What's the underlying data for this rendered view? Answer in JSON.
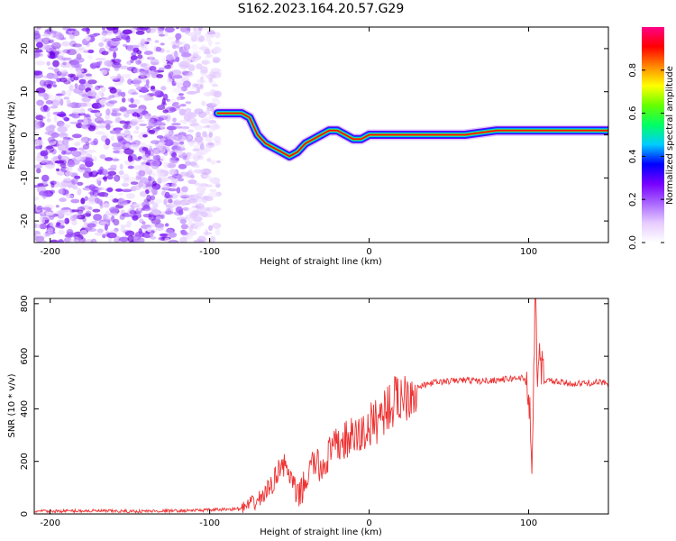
{
  "title": "S162.2023.164.20.57.G29",
  "chart_data": [
    {
      "type": "heatmap",
      "xlabel": "Height of straight line (km)",
      "ylabel": "Frequency (Hz)",
      "xlim": [
        -210,
        150
      ],
      "ylim": [
        -25,
        25
      ],
      "x_ticks": [
        -200,
        -100,
        0,
        100
      ],
      "y_ticks": [
        -20,
        -10,
        0,
        10,
        20
      ],
      "colorbar": {
        "label": "Normalized spectral amplitude",
        "range": [
          0,
          1
        ],
        "ticks": [
          0.0,
          0.2,
          0.4,
          0.6,
          0.8
        ]
      },
      "ridge": {
        "x": [
          -95,
          -90,
          -85,
          -80,
          -75,
          -70,
          -65,
          -60,
          -55,
          -50,
          -45,
          -40,
          -35,
          -30,
          -25,
          -20,
          -15,
          -10,
          -5,
          0,
          5,
          10,
          20,
          40,
          60,
          80,
          100,
          120,
          150
        ],
        "y": [
          5,
          5,
          5,
          5,
          4,
          0,
          -2,
          -3,
          -4,
          -5,
          -4,
          -2,
          -1,
          0,
          1,
          1,
          0,
          -1,
          -1,
          0,
          0,
          0,
          0,
          0,
          0,
          1,
          1,
          1,
          1
        ]
      }
    },
    {
      "type": "line",
      "xlabel": "Height of straight line (km)",
      "ylabel": "SNR (10 * v/v)",
      "xlim": [
        -210,
        150
      ],
      "ylim": [
        0,
        820
      ],
      "x_ticks": [
        -200,
        -100,
        0,
        100
      ],
      "y_ticks": [
        0,
        200,
        400,
        600,
        800
      ],
      "color": "#ee3333",
      "series": [
        {
          "x": [
            -210,
            -180,
            -150,
            -120,
            -100,
            -80,
            -75,
            -70,
            -65,
            -60,
            -55,
            -50,
            -45,
            -40,
            -35,
            -30,
            -25,
            -20,
            -15,
            -10,
            -5,
            0,
            5,
            10,
            15,
            20,
            30,
            40,
            50,
            60,
            70,
            80,
            90,
            95,
            100,
            102,
            104,
            106,
            110,
            120,
            130,
            140,
            150
          ],
          "y": [
            10,
            12,
            10,
            12,
            15,
            20,
            35,
            50,
            80,
            120,
            200,
            150,
            60,
            120,
            200,
            170,
            230,
            260,
            280,
            290,
            300,
            330,
            360,
            400,
            420,
            450,
            480,
            500,
            505,
            510,
            505,
            510,
            515,
            520,
            500,
            150,
            800,
            550,
            510,
            500,
            495,
            500,
            500
          ]
        }
      ]
    }
  ],
  "colors": {
    "colormap": [
      "#ffffff",
      "#e6ccff",
      "#aa66ff",
      "#7700ff",
      "#0000ff",
      "#00ccff",
      "#00ff66",
      "#66ff00",
      "#ffff00",
      "#ff8800",
      "#ff0000",
      "#ff0088"
    ],
    "snr_line": "#ee3333"
  }
}
